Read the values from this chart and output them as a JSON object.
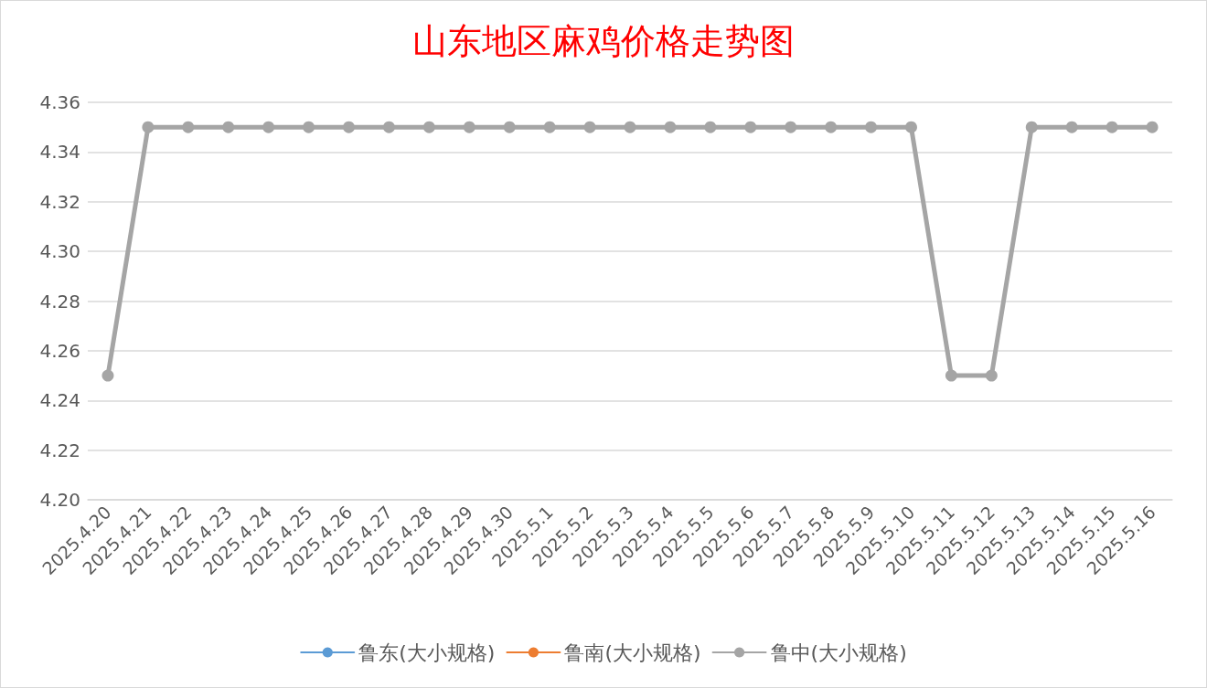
{
  "chart_data": {
    "type": "line",
    "title": "山东地区麻鸡价格走势图",
    "categories": [
      "2025.4.20",
      "2025.4.21",
      "2025.4.22",
      "2025.4.23",
      "2025.4.24",
      "2025.4.25",
      "2025.4.26",
      "2025.4.27",
      "2025.4.28",
      "2025.4.29",
      "2025.4.30",
      "2025.5.1",
      "2025.5.2",
      "2025.5.3",
      "2025.5.4",
      "2025.5.5",
      "2025.5.6",
      "2025.5.7",
      "2025.5.8",
      "2025.5.9",
      "2025.5.10",
      "2025.5.11",
      "2025.5.12",
      "2025.5.13",
      "2025.5.14",
      "2025.5.15",
      "2025.5.16"
    ],
    "series": [
      {
        "name": "鲁东(大小规格)",
        "color": "#5b9bd5",
        "values": [
          null,
          null,
          null,
          null,
          null,
          null,
          null,
          null,
          null,
          null,
          null,
          null,
          null,
          null,
          null,
          null,
          null,
          null,
          null,
          null,
          null,
          null,
          null,
          null,
          null,
          null,
          null
        ]
      },
      {
        "name": "鲁南(大小规格)",
        "color": "#ed7d31",
        "values": [
          null,
          null,
          null,
          null,
          null,
          null,
          null,
          null,
          null,
          null,
          null,
          null,
          null,
          null,
          null,
          null,
          null,
          null,
          null,
          null,
          null,
          null,
          null,
          null,
          null,
          null,
          null
        ]
      },
      {
        "name": "鲁中(大小规格)",
        "color": "#a5a5a5",
        "values": [
          4.25,
          4.35,
          4.35,
          4.35,
          4.35,
          4.35,
          4.35,
          4.35,
          4.35,
          4.35,
          4.35,
          4.35,
          4.35,
          4.35,
          4.35,
          4.35,
          4.35,
          4.35,
          4.35,
          4.35,
          4.35,
          4.25,
          4.25,
          4.35,
          4.35,
          4.35,
          4.35
        ]
      }
    ],
    "ylim": [
      4.2,
      4.36
    ],
    "yticks": [
      {
        "value": 4.2,
        "label": "4.20"
      },
      4.22,
      4.24,
      4.26,
      4.28,
      {
        "value": 4.3,
        "label": "4.30"
      },
      4.32,
      4.34,
      4.36
    ],
    "grid": "y",
    "legend": "bottom",
    "marker": "circle"
  }
}
